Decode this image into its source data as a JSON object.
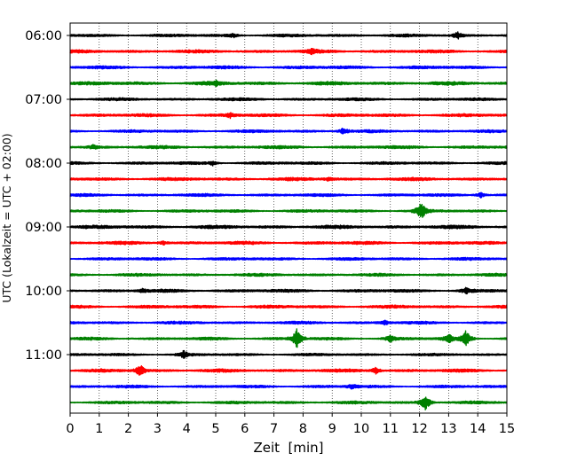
{
  "chart_data": {
    "type": "line",
    "title": "",
    "xlabel": "Zeit  [min]",
    "ylabel": "UTC (Lokalzeit = UTC + 02:00)",
    "xlim": [
      0,
      15
    ],
    "x_ticks": [
      0,
      1,
      2,
      3,
      4,
      5,
      6,
      7,
      8,
      9,
      10,
      11,
      12,
      13,
      14,
      15
    ],
    "y_tick_labels": [
      "06:00",
      "07:00",
      "08:00",
      "09:00",
      "10:00",
      "11:00"
    ],
    "grid": "vertical dotted at each minute",
    "trace_interval_minutes": 15,
    "colors_cycle": [
      "#000000",
      "#ff0000",
      "#0000ff",
      "#008000"
    ],
    "traces": [
      {
        "start": "06:00",
        "color": "#000000",
        "amp": 0.18,
        "events": [
          {
            "t": 5.6,
            "a": 0.3
          },
          {
            "t": 13.3,
            "a": 0.55
          }
        ]
      },
      {
        "start": "06:15",
        "color": "#ff0000",
        "amp": 0.2,
        "events": [
          {
            "t": 8.3,
            "a": 0.3
          }
        ]
      },
      {
        "start": "06:30",
        "color": "#0000ff",
        "amp": 0.2,
        "events": []
      },
      {
        "start": "06:45",
        "color": "#008000",
        "amp": 0.22,
        "events": [
          {
            "t": 5.0,
            "a": 0.3
          }
        ]
      },
      {
        "start": "07:00",
        "color": "#000000",
        "amp": 0.18,
        "events": []
      },
      {
        "start": "07:15",
        "color": "#ff0000",
        "amp": 0.2,
        "events": [
          {
            "t": 5.5,
            "a": 0.3
          }
        ]
      },
      {
        "start": "07:30",
        "color": "#0000ff",
        "amp": 0.18,
        "events": [
          {
            "t": 9.4,
            "a": 0.55
          }
        ]
      },
      {
        "start": "07:45",
        "color": "#008000",
        "amp": 0.2,
        "events": [
          {
            "t": 0.8,
            "a": 0.3
          }
        ]
      },
      {
        "start": "08:00",
        "color": "#000000",
        "amp": 0.18,
        "events": [
          {
            "t": 4.9,
            "a": 0.3
          }
        ]
      },
      {
        "start": "08:15",
        "color": "#ff0000",
        "amp": 0.2,
        "events": [
          {
            "t": 8.9,
            "a": 0.3
          }
        ]
      },
      {
        "start": "08:30",
        "color": "#0000ff",
        "amp": 0.18,
        "events": [
          {
            "t": 14.1,
            "a": 0.45
          }
        ]
      },
      {
        "start": "08:45",
        "color": "#008000",
        "amp": 0.18,
        "events": [
          {
            "t": 12.05,
            "a": 1.4
          }
        ]
      },
      {
        "start": "09:00",
        "color": "#000000",
        "amp": 0.22,
        "events": []
      },
      {
        "start": "09:15",
        "color": "#ff0000",
        "amp": 0.2,
        "events": [
          {
            "t": 3.2,
            "a": 0.3
          }
        ]
      },
      {
        "start": "09:30",
        "color": "#0000ff",
        "amp": 0.18,
        "events": []
      },
      {
        "start": "09:45",
        "color": "#008000",
        "amp": 0.18,
        "events": []
      },
      {
        "start": "10:00",
        "color": "#000000",
        "amp": 0.2,
        "events": [
          {
            "t": 2.5,
            "a": 0.3
          },
          {
            "t": 13.6,
            "a": 0.45
          }
        ]
      },
      {
        "start": "10:15",
        "color": "#ff0000",
        "amp": 0.2,
        "events": []
      },
      {
        "start": "10:30",
        "color": "#0000ff",
        "amp": 0.18,
        "events": [
          {
            "t": 10.8,
            "a": 0.35
          }
        ]
      },
      {
        "start": "10:45",
        "color": "#008000",
        "amp": 0.18,
        "events": [
          {
            "t": 7.8,
            "a": 1.6
          },
          {
            "t": 11.0,
            "a": 0.5
          },
          {
            "t": 13.0,
            "a": 0.6
          },
          {
            "t": 13.6,
            "a": 1.2
          }
        ]
      },
      {
        "start": "11:00",
        "color": "#000000",
        "amp": 0.16,
        "events": [
          {
            "t": 3.9,
            "a": 0.5
          }
        ]
      },
      {
        "start": "11:15",
        "color": "#ff0000",
        "amp": 0.2,
        "events": [
          {
            "t": 2.4,
            "a": 0.9
          },
          {
            "t": 10.5,
            "a": 0.5
          }
        ]
      },
      {
        "start": "11:30",
        "color": "#0000ff",
        "amp": 0.18,
        "events": [
          {
            "t": 9.7,
            "a": 0.35
          }
        ]
      },
      {
        "start": "11:45",
        "color": "#008000",
        "amp": 0.18,
        "events": [
          {
            "t": 12.2,
            "a": 1.3
          }
        ]
      }
    ]
  }
}
